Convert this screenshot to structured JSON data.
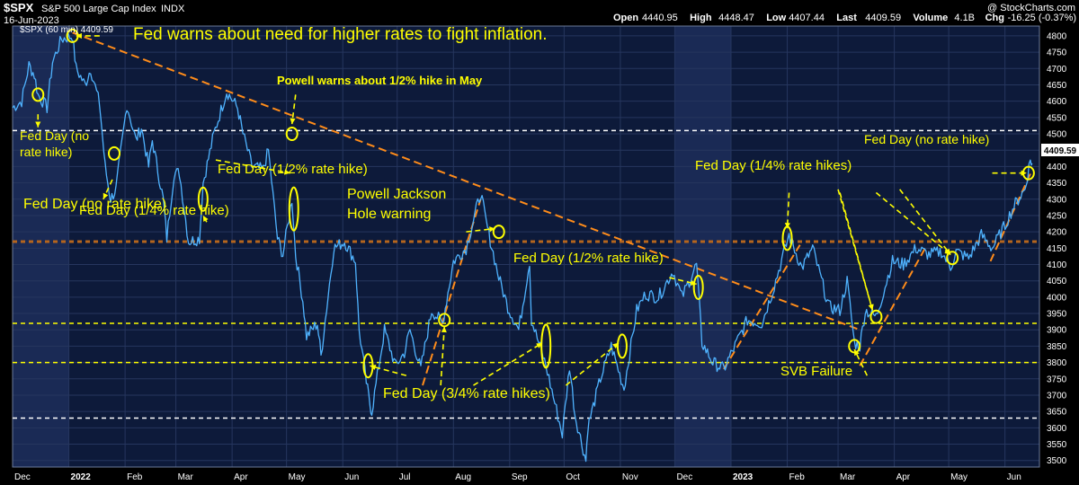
{
  "header": {
    "symbol": "$SPX",
    "name": "S&P 500 Large Cap Index",
    "exchange": "INDX",
    "date": "16-Jun-2023",
    "watermark": "@ StockCharts.com",
    "stats": [
      {
        "label": "Open",
        "value": "4440.95"
      },
      {
        "label": "High",
        "value": "4448.47"
      },
      {
        "label": "Low",
        "value": "4407.44"
      },
      {
        "label": "Last",
        "value": "4409.59"
      },
      {
        "label": "Volume",
        "value": "4.1B"
      },
      {
        "label": "Chg",
        "value": "-16.25 (-0.37%)"
      }
    ],
    "legend": "$SPX (60 min) 4409.59",
    "last_price_tag": "4409.59"
  },
  "annotations": [
    "Fed warns about need for higher rates to fight inflation.",
    "Powell warns about 1/2% hike in May",
    "Fed Day (no\nrate hike)",
    "Fed Day (no rate hike)",
    "Fed Day (1/4% rate hike)",
    "Fed Day (1/2% rate hike)",
    "Powell Jackson\nHole warning",
    "Fed Day (1/2% rate hike)",
    "Fed Day (3/4% rate hikes)",
    "Fed Day (1/4% rate hikes)",
    "SVB Failure",
    "Fed Day (no rate hike)"
  ],
  "chart_data": {
    "type": "line",
    "title": "$SPX S&P 500 Large Cap Index INDX",
    "series": [
      {
        "name": "$SPX (60 min)",
        "color": "#4fb3ff",
        "points": [
          [
            "2021-12-01",
            4580
          ],
          [
            "2021-12-06",
            4600
          ],
          [
            "2021-12-10",
            4710
          ],
          [
            "2021-12-13",
            4680
          ],
          [
            "2021-12-15",
            4620
          ],
          [
            "2021-12-20",
            4580
          ],
          [
            "2021-12-23",
            4720
          ],
          [
            "2021-12-28",
            4790
          ],
          [
            "2022-01-03",
            4800
          ],
          [
            "2022-01-05",
            4700
          ],
          [
            "2022-01-10",
            4650
          ],
          [
            "2022-01-13",
            4700
          ],
          [
            "2022-01-18",
            4590
          ],
          [
            "2022-01-21",
            4400
          ],
          [
            "2022-01-24",
            4300
          ],
          [
            "2022-01-27",
            4330
          ],
          [
            "2022-02-02",
            4590
          ],
          [
            "2022-02-07",
            4480
          ],
          [
            "2022-02-10",
            4520
          ],
          [
            "2022-02-14",
            4400
          ],
          [
            "2022-02-16",
            4480
          ],
          [
            "2022-02-22",
            4300
          ],
          [
            "2022-02-24",
            4180
          ],
          [
            "2022-02-28",
            4380
          ],
          [
            "2022-03-03",
            4380
          ],
          [
            "2022-03-08",
            4170
          ],
          [
            "2022-03-14",
            4180
          ],
          [
            "2022-03-16",
            4350
          ],
          [
            "2022-03-22",
            4500
          ],
          [
            "2022-03-29",
            4630
          ],
          [
            "2022-04-04",
            4580
          ],
          [
            "2022-04-07",
            4500
          ],
          [
            "2022-04-12",
            4400
          ],
          [
            "2022-04-18",
            4390
          ],
          [
            "2022-04-21",
            4450
          ],
          [
            "2022-04-26",
            4180
          ],
          [
            "2022-04-29",
            4130
          ],
          [
            "2022-05-04",
            4300
          ],
          [
            "2022-05-06",
            4130
          ],
          [
            "2022-05-10",
            3990
          ],
          [
            "2022-05-12",
            3880
          ],
          [
            "2022-05-18",
            3920
          ],
          [
            "2022-05-20",
            3820
          ],
          [
            "2022-05-27",
            4150
          ],
          [
            "2022-06-02",
            4170
          ],
          [
            "2022-06-08",
            4110
          ],
          [
            "2022-06-10",
            3900
          ],
          [
            "2022-06-14",
            3740
          ],
          [
            "2022-06-16",
            3670
          ],
          [
            "2022-06-17",
            3650
          ],
          [
            "2022-06-24",
            3900
          ],
          [
            "2022-06-30",
            3790
          ],
          [
            "2022-07-05",
            3830
          ],
          [
            "2022-07-08",
            3900
          ],
          [
            "2022-07-14",
            3780
          ],
          [
            "2022-07-20",
            3960
          ],
          [
            "2022-07-26",
            3920
          ],
          [
            "2022-08-01",
            4110
          ],
          [
            "2022-08-08",
            4150
          ],
          [
            "2022-08-16",
            4320
          ],
          [
            "2022-08-19",
            4230
          ],
          [
            "2022-08-26",
            4060
          ],
          [
            "2022-08-31",
            3970
          ],
          [
            "2022-09-06",
            3900
          ],
          [
            "2022-09-12",
            4110
          ],
          [
            "2022-09-13",
            3930
          ],
          [
            "2022-09-21",
            3790
          ],
          [
            "2022-09-30",
            3580
          ],
          [
            "2022-10-04",
            3790
          ],
          [
            "2022-10-07",
            3640
          ],
          [
            "2022-10-13",
            3500
          ],
          [
            "2022-10-14",
            3600
          ],
          [
            "2022-10-21",
            3750
          ],
          [
            "2022-10-27",
            3850
          ],
          [
            "2022-11-03",
            3720
          ],
          [
            "2022-11-10",
            3960
          ],
          [
            "2022-11-15",
            4010
          ],
          [
            "2022-11-22",
            4000
          ],
          [
            "2022-11-30",
            4080
          ],
          [
            "2022-12-05",
            4000
          ],
          [
            "2022-12-13",
            4100
          ],
          [
            "2022-12-16",
            3860
          ],
          [
            "2022-12-22",
            3800
          ],
          [
            "2022-12-28",
            3780
          ],
          [
            "2023-01-04",
            3860
          ],
          [
            "2023-01-10",
            3930
          ],
          [
            "2023-01-18",
            3920
          ],
          [
            "2023-01-24",
            4020
          ],
          [
            "2023-02-02",
            4190
          ],
          [
            "2023-02-09",
            4090
          ],
          [
            "2023-02-15",
            4150
          ],
          [
            "2023-02-24",
            3970
          ],
          [
            "2023-03-02",
            3960
          ],
          [
            "2023-03-06",
            4050
          ],
          [
            "2023-03-10",
            3860
          ],
          [
            "2023-03-13",
            3850
          ],
          [
            "2023-03-16",
            3960
          ],
          [
            "2023-03-22",
            3940
          ],
          [
            "2023-03-31",
            4110
          ],
          [
            "2023-04-06",
            4100
          ],
          [
            "2023-04-13",
            4150
          ],
          [
            "2023-04-20",
            4130
          ],
          [
            "2023-04-27",
            4140
          ],
          [
            "2023-05-02",
            4090
          ],
          [
            "2023-05-05",
            4140
          ],
          [
            "2023-05-12",
            4120
          ],
          [
            "2023-05-19",
            4190
          ],
          [
            "2023-05-25",
            4150
          ],
          [
            "2023-06-01",
            4220
          ],
          [
            "2023-06-06",
            4280
          ],
          [
            "2023-06-12",
            4330
          ],
          [
            "2023-06-15",
            4420
          ],
          [
            "2023-06-16",
            4409.59
          ]
        ]
      }
    ],
    "x_axis": {
      "start": "2021-12-01",
      "end": "2023-06-20",
      "labels": [
        {
          "text": "Dec",
          "date": "2021-12-01",
          "bold": false
        },
        {
          "text": "2022",
          "date": "2022-01-01",
          "bold": true
        },
        {
          "text": "Feb",
          "date": "2022-02-01",
          "bold": false
        },
        {
          "text": "Mar",
          "date": "2022-03-01",
          "bold": false
        },
        {
          "text": "Apr",
          "date": "2022-04-01",
          "bold": false
        },
        {
          "text": "May",
          "date": "2022-05-01",
          "bold": false
        },
        {
          "text": "Jun",
          "date": "2022-06-01",
          "bold": false
        },
        {
          "text": "Jul",
          "date": "2022-07-01",
          "bold": false
        },
        {
          "text": "Aug",
          "date": "2022-08-01",
          "bold": false
        },
        {
          "text": "Sep",
          "date": "2022-09-01",
          "bold": false
        },
        {
          "text": "Oct",
          "date": "2022-10-01",
          "bold": false
        },
        {
          "text": "Nov",
          "date": "2022-11-01",
          "bold": false
        },
        {
          "text": "Dec",
          "date": "2022-12-01",
          "bold": false
        },
        {
          "text": "2023",
          "date": "2023-01-01",
          "bold": true
        },
        {
          "text": "Feb",
          "date": "2023-02-01",
          "bold": false
        },
        {
          "text": "Mar",
          "date": "2023-03-01",
          "bold": false
        },
        {
          "text": "Apr",
          "date": "2023-04-01",
          "bold": false
        },
        {
          "text": "May",
          "date": "2023-05-01",
          "bold": false
        },
        {
          "text": "Jun",
          "date": "2023-06-01",
          "bold": false
        }
      ]
    },
    "y_axis": {
      "ylim": [
        3480,
        4830
      ],
      "ticks": [
        3500,
        3550,
        3600,
        3650,
        3700,
        3750,
        3800,
        3850,
        3900,
        3950,
        4000,
        4050,
        4100,
        4150,
        4200,
        4250,
        4300,
        4350,
        4400,
        4450,
        4500,
        4550,
        4600,
        4650,
        4700,
        4750,
        4800
      ]
    },
    "grid": true,
    "background": {
      "shaded_ranges": [
        [
          "2021-12-01",
          "2022-01-01"
        ],
        [
          "2022-12-01",
          "2023-01-01"
        ]
      ],
      "panel_color": "#0d1a3a",
      "shaded_color": "#1a2a55"
    },
    "horizontal_levels": [
      {
        "value": 4510,
        "color": "#ffffff",
        "style": "dashed"
      },
      {
        "value": 4170,
        "color": "#b5651d",
        "style": "dashed"
      },
      {
        "value": 3920,
        "color": "#ffff00",
        "style": "dashed"
      },
      {
        "value": 3800,
        "color": "#ffff00",
        "style": "dashed"
      },
      {
        "value": 3630,
        "color": "#ffffff",
        "style": "dashed"
      }
    ],
    "trendlines": [
      {
        "from": [
          "2022-01-03",
          4810
        ],
        "to": [
          "2023-03-13",
          3900
        ],
        "color": "#ff8c1a"
      },
      {
        "from": [
          "2022-07-15",
          3730
        ],
        "to": [
          "2022-08-16",
          4300
        ],
        "color": "#ff8c1a"
      },
      {
        "from": [
          "2022-12-28",
          3780
        ],
        "to": [
          "2023-02-08",
          4160
        ],
        "color": "#ff8c1a"
      },
      {
        "from": [
          "2023-03-13",
          3790
        ],
        "to": [
          "2023-04-18",
          4150
        ],
        "color": "#ff8c1a"
      },
      {
        "from": [
          "2023-05-24",
          4110
        ],
        "to": [
          "2023-06-16",
          4390
        ],
        "color": "#ff8c1a"
      }
    ],
    "event_markers": [
      {
        "date": "2021-12-15",
        "value": 4620,
        "shape": "circle"
      },
      {
        "date": "2022-01-03",
        "value": 4800,
        "shape": "circle"
      },
      {
        "date": "2022-01-26",
        "value": 4440,
        "shape": "circle"
      },
      {
        "date": "2022-03-16",
        "value": 4300,
        "shape": "ellipse"
      },
      {
        "date": "2022-05-04",
        "value": 4500,
        "shape": "circle"
      },
      {
        "date": "2022-05-05",
        "value": 4270,
        "shape": "tall"
      },
      {
        "date": "2022-06-15",
        "value": 3790,
        "shape": "ellipse"
      },
      {
        "date": "2022-07-27",
        "value": 3930,
        "shape": "circle"
      },
      {
        "date": "2022-08-26",
        "value": 4200,
        "shape": "circle"
      },
      {
        "date": "2022-09-21",
        "value": 3850,
        "shape": "tall"
      },
      {
        "date": "2022-11-02",
        "value": 3850,
        "shape": "ellipse"
      },
      {
        "date": "2022-12-14",
        "value": 4030,
        "shape": "ellipse"
      },
      {
        "date": "2023-02-01",
        "value": 4180,
        "shape": "ellipse"
      },
      {
        "date": "2023-03-10",
        "value": 3850,
        "shape": "circle"
      },
      {
        "date": "2023-03-22",
        "value": 3940,
        "shape": "circle"
      },
      {
        "date": "2023-05-03",
        "value": 4120,
        "shape": "circle"
      },
      {
        "date": "2023-06-14",
        "value": 4380,
        "shape": "circle"
      }
    ]
  }
}
